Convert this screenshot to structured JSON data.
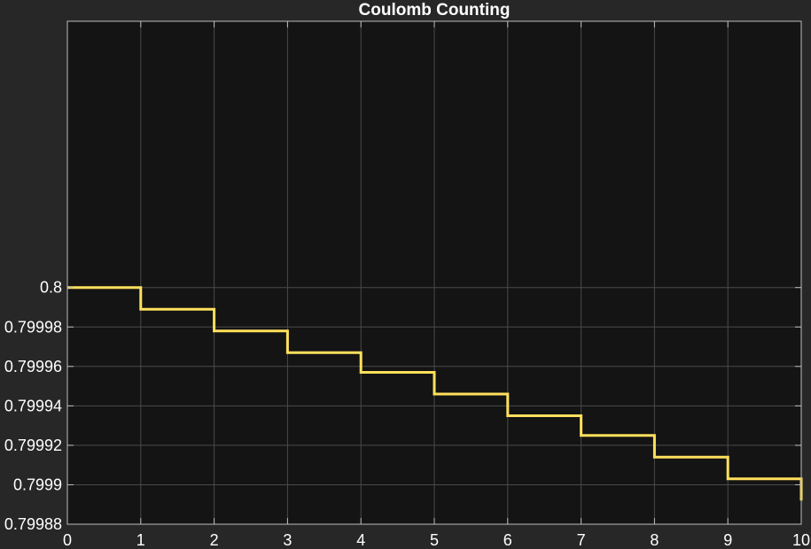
{
  "chart_data": {
    "type": "line",
    "step": true,
    "title": "Coulomb Counting",
    "xlabel": "",
    "ylabel": "",
    "xlim": [
      0,
      10
    ],
    "ylim": [
      0.79988,
      0.800135
    ],
    "xticks": [
      0,
      1,
      2,
      3,
      4,
      5,
      6,
      7,
      8,
      9,
      10
    ],
    "xtick_labels": [
      "0",
      "1",
      "2",
      "3",
      "4",
      "5",
      "6",
      "7",
      "8",
      "9",
      "10"
    ],
    "yticks": [
      0.79988,
      0.7999,
      0.79992,
      0.79994,
      0.79996,
      0.79998,
      0.8
    ],
    "ytick_labels": [
      "0.79988",
      "0.7999",
      "0.79992",
      "0.79994",
      "0.79996",
      "0.79998",
      "0.8"
    ],
    "grid": true,
    "series": [
      {
        "name": "",
        "color": "#ffe05c",
        "x": [
          0,
          1,
          2,
          3,
          4,
          5,
          6,
          7,
          8,
          9,
          10
        ],
        "y": [
          0.8,
          0.799989,
          0.799978,
          0.799967,
          0.799957,
          0.799946,
          0.799935,
          0.799925,
          0.799914,
          0.799903,
          0.799892
        ]
      }
    ]
  },
  "colors": {
    "figure_background": "#272727",
    "axes_background": "#141414",
    "grid": "#4a4a4a",
    "axis_line": "#bdbdbd",
    "text": "#ffffff"
  }
}
